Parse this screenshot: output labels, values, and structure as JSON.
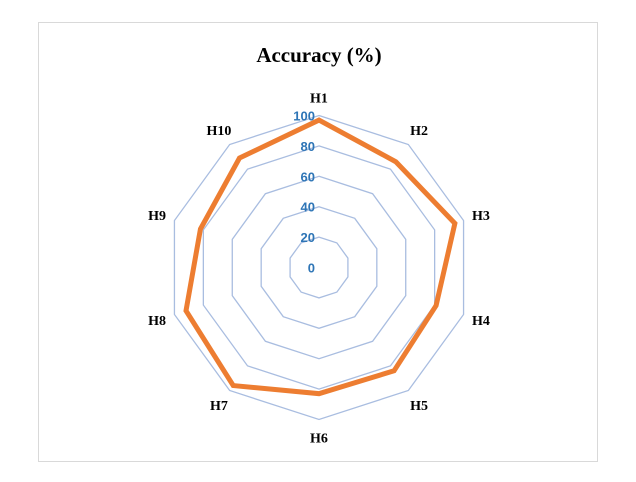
{
  "chart_data": {
    "type": "radar",
    "title": "Accuracy (%)",
    "categories": [
      "H1",
      "H2",
      "H3",
      "H4",
      "H5",
      "H6",
      "H7",
      "H8",
      "H9",
      "H10"
    ],
    "values": [
      97,
      86,
      94,
      81,
      84,
      83,
      96,
      92,
      82,
      89
    ],
    "rlim": [
      0,
      100
    ],
    "r_ticks": [
      0,
      20,
      40,
      60,
      80,
      100
    ],
    "grid": true,
    "legend": "none",
    "colors": {
      "series": "#ed7d31",
      "grid": "#a9bde0",
      "tick_labels": "#2e75b6"
    }
  }
}
